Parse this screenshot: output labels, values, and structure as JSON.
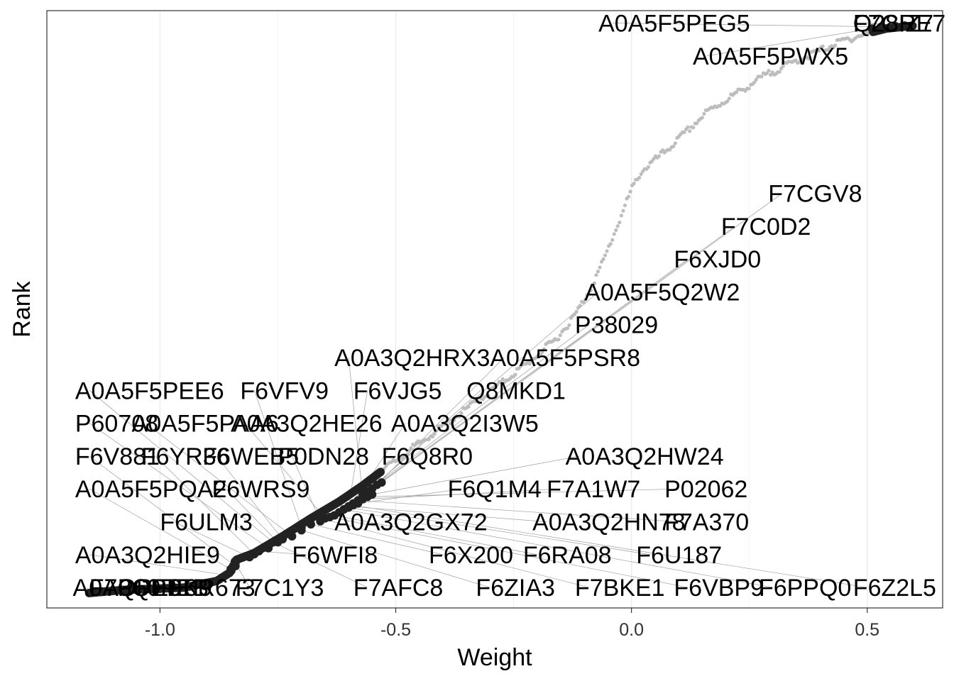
{
  "chart_data": {
    "type": "scatter",
    "title": "",
    "xlabel": "Weight",
    "ylabel": "Rank",
    "xlim": [
      -1.24,
      0.66
    ],
    "ylim": [
      0,
      1
    ],
    "grid": true,
    "x_ticks": [
      -1.0,
      -0.5,
      0.0,
      0.5
    ],
    "x_tick_labels": [
      "-1.0",
      "-0.5",
      "0.0",
      "0.5"
    ],
    "colors": {
      "highlight": "#222222",
      "background": "#bdbdbd",
      "leader": "#9e9e9e",
      "panel_border": "#333333",
      "grid": "#ebebeb"
    },
    "curve": [
      [
        -1.15,
        0.025
      ],
      [
        -1.08,
        0.03
      ],
      [
        -0.95,
        0.034
      ],
      [
        -0.88,
        0.045
      ],
      [
        -0.85,
        0.06
      ],
      [
        -0.84,
        0.08
      ],
      [
        -0.8,
        0.092
      ],
      [
        -0.74,
        0.12
      ],
      [
        -0.68,
        0.15
      ],
      [
        -0.62,
        0.178
      ],
      [
        -0.57,
        0.205
      ],
      [
        -0.52,
        0.235
      ],
      [
        -0.46,
        0.27
      ],
      [
        -0.39,
        0.31
      ],
      [
        -0.3,
        0.362
      ],
      [
        -0.22,
        0.41
      ],
      [
        -0.16,
        0.45
      ],
      [
        -0.12,
        0.49
      ],
      [
        -0.09,
        0.53
      ],
      [
        -0.06,
        0.58
      ],
      [
        -0.04,
        0.62
      ],
      [
        -0.02,
        0.66
      ],
      [
        0.0,
        0.7
      ],
      [
        0.02,
        0.73
      ],
      [
        0.05,
        0.75
      ],
      [
        0.08,
        0.77
      ],
      [
        0.12,
        0.8
      ],
      [
        0.16,
        0.83
      ],
      [
        0.22,
        0.86
      ],
      [
        0.28,
        0.89
      ],
      [
        0.36,
        0.92
      ],
      [
        0.45,
        0.95
      ],
      [
        0.5,
        0.962
      ],
      [
        0.54,
        0.97
      ],
      [
        0.6,
        0.975
      ]
    ],
    "highlight_range": [
      -1.15,
      -0.53
    ],
    "top_highlight_range": [
      0.51,
      0.6
    ],
    "labels": [
      {
        "text": "A0A5F5PEG5",
        "x": 0.53,
        "y": 0.973,
        "lx": -0.07,
        "ly": 0.965
      },
      {
        "text": "Q28IZ7",
        "x": 0.56,
        "y": 0.974,
        "lx": 0.47,
        "ly": 0.965
      },
      {
        "text": "F7CRE7",
        "x": 0.58,
        "y": 0.975,
        "lx": 0.47,
        "ly": 0.965
      },
      {
        "text": "A0A5F5PWX5",
        "x": 0.51,
        "y": 0.97,
        "lx": 0.13,
        "ly": 0.91
      },
      {
        "text": "F7CGV8",
        "x": -0.53,
        "y": 0.21,
        "lx": 0.29,
        "ly": 0.68
      },
      {
        "text": "F7C0D2",
        "x": -0.54,
        "y": 0.206,
        "lx": 0.19,
        "ly": 0.625
      },
      {
        "text": "F6XJD0",
        "x": -0.55,
        "y": 0.2,
        "lx": 0.09,
        "ly": 0.57
      },
      {
        "text": "A0A5F5Q2W2",
        "x": -0.56,
        "y": 0.195,
        "lx": -0.1,
        "ly": 0.515
      },
      {
        "text": "P38029",
        "x": -0.57,
        "y": 0.19,
        "lx": -0.12,
        "ly": 0.46
      },
      {
        "text": "A0A3Q2HRX3",
        "x": -0.57,
        "y": 0.185,
        "lx": -0.63,
        "ly": 0.405
      },
      {
        "text": "A0A5F5PSR8",
        "x": -0.56,
        "y": 0.19,
        "lx": -0.3,
        "ly": 0.405
      },
      {
        "text": "A0A5F5PEE6",
        "x": -0.76,
        "y": 0.11,
        "lx": -1.18,
        "ly": 0.35
      },
      {
        "text": "F6VFV9",
        "x": -0.7,
        "y": 0.135,
        "lx": -0.83,
        "ly": 0.35
      },
      {
        "text": "F6VJG5",
        "x": -0.6,
        "y": 0.17,
        "lx": -0.59,
        "ly": 0.35
      },
      {
        "text": "Q8MKD1",
        "x": -0.58,
        "y": 0.18,
        "lx": -0.35,
        "ly": 0.35
      },
      {
        "text": "P60708",
        "x": -0.77,
        "y": 0.1,
        "lx": -1.18,
        "ly": 0.295
      },
      {
        "text": "A0A5F5PAA6",
        "x": -0.72,
        "y": 0.12,
        "lx": -1.06,
        "ly": 0.295
      },
      {
        "text": "A0A3Q2HE26",
        "x": -0.65,
        "y": 0.15,
        "lx": -0.85,
        "ly": 0.295
      },
      {
        "text": "A0A3Q2I3W5",
        "x": -0.59,
        "y": 0.175,
        "lx": -0.51,
        "ly": 0.295
      },
      {
        "text": "F6V881",
        "x": -0.84,
        "y": 0.07,
        "lx": -1.18,
        "ly": 0.24
      },
      {
        "text": "F6YR36",
        "x": -0.8,
        "y": 0.09,
        "lx": -1.04,
        "ly": 0.24
      },
      {
        "text": "F6WEB5",
        "x": -0.74,
        "y": 0.115,
        "lx": -0.91,
        "ly": 0.24
      },
      {
        "text": "P0DN28",
        "x": -0.66,
        "y": 0.145,
        "lx": -0.75,
        "ly": 0.24
      },
      {
        "text": "F6Q8R0",
        "x": -0.61,
        "y": 0.165,
        "lx": -0.53,
        "ly": 0.24
      },
      {
        "text": "A0A3Q2HW24",
        "x": -0.55,
        "y": 0.19,
        "lx": -0.14,
        "ly": 0.24
      },
      {
        "text": "A0A5F5PQA2",
        "x": -0.85,
        "y": 0.065,
        "lx": -1.18,
        "ly": 0.185
      },
      {
        "text": "F6WRS9",
        "x": -0.75,
        "y": 0.11,
        "lx": -0.89,
        "ly": 0.185
      },
      {
        "text": "F6Q1M4",
        "x": -0.58,
        "y": 0.175,
        "lx": -0.39,
        "ly": 0.185
      },
      {
        "text": "F7A1W7",
        "x": -0.57,
        "y": 0.182,
        "lx": -0.18,
        "ly": 0.185
      },
      {
        "text": "P02062",
        "x": -0.56,
        "y": 0.186,
        "lx": 0.07,
        "ly": 0.185
      },
      {
        "text": "F6ULM3",
        "x": -0.81,
        "y": 0.085,
        "lx": -1.0,
        "ly": 0.13
      },
      {
        "text": "A0A3Q2GX72",
        "x": -0.62,
        "y": 0.16,
        "lx": -0.63,
        "ly": 0.13
      },
      {
        "text": "A0A3Q2HN78",
        "x": -0.6,
        "y": 0.17,
        "lx": -0.21,
        "ly": 0.13
      },
      {
        "text": "F7A370",
        "x": -0.58,
        "y": 0.18,
        "lx": 0.07,
        "ly": 0.13
      },
      {
        "text": "A0A3Q2HIE9",
        "x": -0.86,
        "y": 0.055,
        "lx": -1.18,
        "ly": 0.075
      },
      {
        "text": "F6WFI8",
        "x": -0.79,
        "y": 0.095,
        "lx": -0.72,
        "ly": 0.075
      },
      {
        "text": "F6X200",
        "x": -0.68,
        "y": 0.14,
        "lx": -0.43,
        "ly": 0.075
      },
      {
        "text": "F6RA08",
        "x": -0.63,
        "y": 0.155,
        "lx": -0.23,
        "ly": 0.075
      },
      {
        "text": "F6U187",
        "x": -0.6,
        "y": 0.168,
        "lx": 0.01,
        "ly": 0.075
      },
      {
        "text": "A0A3QPEK9",
        "x": -1.15,
        "y": 0.025,
        "lx": -1.185,
        "ly": 0.02
      },
      {
        "text": "F7QPE9",
        "x": -1.08,
        "y": 0.03,
        "lx": -1.15,
        "ly": 0.02
      },
      {
        "text": "P60PEB",
        "x": -1.0,
        "y": 0.032,
        "lx": -1.09,
        "ly": 0.02
      },
      {
        "text": "F6R673",
        "x": -0.9,
        "y": 0.04,
        "lx": -0.98,
        "ly": 0.02
      },
      {
        "text": "F7C1Y3",
        "x": -0.84,
        "y": 0.075,
        "lx": -0.84,
        "ly": 0.02
      },
      {
        "text": "F7AFC8",
        "x": -0.76,
        "y": 0.11,
        "lx": -0.59,
        "ly": 0.02
      },
      {
        "text": "F6ZIA3",
        "x": -0.7,
        "y": 0.13,
        "lx": -0.33,
        "ly": 0.02
      },
      {
        "text": "F7BKE1",
        "x": -0.66,
        "y": 0.15,
        "lx": -0.12,
        "ly": 0.02
      },
      {
        "text": "F6VBP9",
        "x": -0.64,
        "y": 0.152,
        "lx": 0.09,
        "ly": 0.02
      },
      {
        "text": "F6PPQ0",
        "x": -0.61,
        "y": 0.165,
        "lx": 0.27,
        "ly": 0.02
      },
      {
        "text": "F6Z2L5",
        "x": -0.59,
        "y": 0.172,
        "lx": 0.47,
        "ly": 0.02
      }
    ]
  }
}
